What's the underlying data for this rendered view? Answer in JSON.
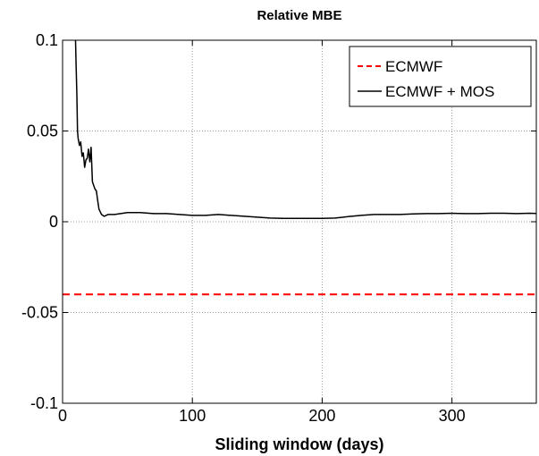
{
  "chart_data": {
    "type": "line",
    "title": "Relative MBE",
    "xlabel": "Sliding window (days)",
    "ylabel": "",
    "xlim": [
      0,
      365
    ],
    "ylim": [
      -0.1,
      0.1
    ],
    "xticks": [
      0,
      100,
      200,
      300
    ],
    "xtick_labels": [
      "0",
      "100",
      "200",
      "300"
    ],
    "yticks": [
      -0.1,
      -0.05,
      0,
      0.05,
      0.1
    ],
    "ytick_labels": [
      "-0.1",
      "-0.05",
      "0",
      "0.05",
      "0.1"
    ],
    "grid": true,
    "legend_position": "top-right",
    "series": [
      {
        "name": "ECMWF",
        "color": "#ff0000",
        "style": "dashed",
        "x": [
          0,
          365
        ],
        "y": [
          -0.04,
          -0.04
        ]
      },
      {
        "name": "ECMWF + MOS",
        "color": "#000000",
        "style": "solid",
        "x": [
          10,
          10.5,
          11,
          11.5,
          12,
          13,
          14,
          15,
          16,
          17,
          18,
          19,
          20,
          21,
          22,
          23,
          24,
          25,
          26,
          27,
          28,
          30,
          32,
          35,
          40,
          50,
          60,
          70,
          80,
          90,
          100,
          110,
          120,
          130,
          140,
          150,
          160,
          170,
          180,
          190,
          200,
          210,
          220,
          230,
          240,
          250,
          260,
          270,
          280,
          290,
          300,
          310,
          320,
          330,
          340,
          350,
          360,
          365
        ],
        "y": [
          0.1,
          0.085,
          0.07,
          0.05,
          0.046,
          0.042,
          0.044,
          0.036,
          0.038,
          0.03,
          0.034,
          0.035,
          0.04,
          0.033,
          0.041,
          0.022,
          0.02,
          0.018,
          0.017,
          0.012,
          0.007,
          0.004,
          0.003,
          0.004,
          0.004,
          0.005,
          0.005,
          0.0045,
          0.0045,
          0.004,
          0.0035,
          0.0035,
          0.004,
          0.0035,
          0.003,
          0.0025,
          0.002,
          0.0018,
          0.0018,
          0.0018,
          0.0018,
          0.002,
          0.0028,
          0.0035,
          0.004,
          0.004,
          0.004,
          0.0043,
          0.0045,
          0.0045,
          0.0047,
          0.0045,
          0.0045,
          0.0047,
          0.0047,
          0.0045,
          0.0047,
          0.0046
        ]
      }
    ]
  }
}
